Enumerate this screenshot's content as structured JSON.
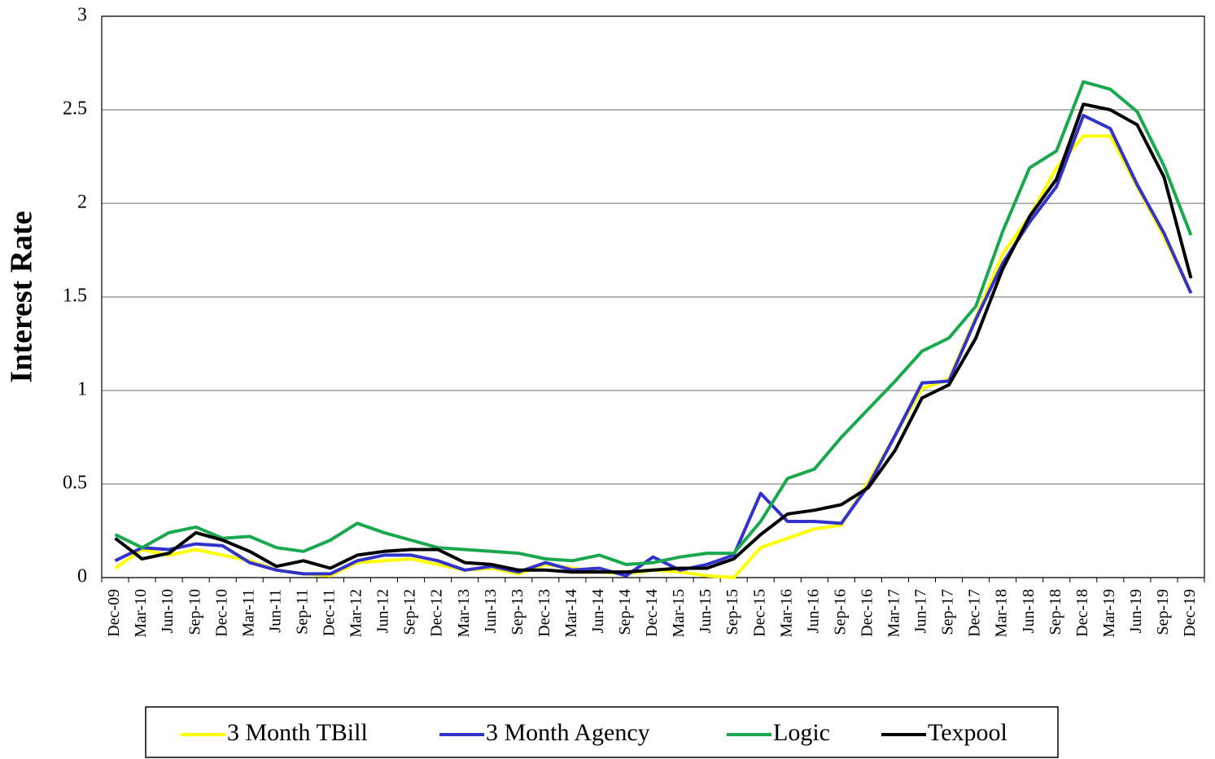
{
  "chart_data": {
    "type": "line",
    "y_label": "Interest Rate",
    "categories": [
      "Dec-09",
      "Mar-10",
      "Jun-10",
      "Sep-10",
      "Dec-10",
      "Mar-11",
      "Jun-11",
      "Sep-11",
      "Dec-11",
      "Mar-12",
      "Jun-12",
      "Sep-12",
      "Dec-12",
      "Mar-13",
      "Jun-13",
      "Sep-13",
      "Dec-13",
      "Mar-14",
      "Jun-14",
      "Sep-14",
      "Dec-14",
      "Mar-15",
      "Jun-15",
      "Sep-15",
      "Dec-15",
      "Mar-16",
      "Jun-16",
      "Sep-16",
      "Dec-16",
      "Mar-17",
      "Jun-17",
      "Sep-17",
      "Dec-17",
      "Mar-18",
      "Jun-18",
      "Sep-18",
      "Dec-18",
      "Mar-19",
      "Jun-19",
      "Sep-19",
      "Dec-19"
    ],
    "series": [
      {
        "name": "3 Month TBill",
        "color": "#ffff00",
        "values": [
          0.05,
          0.15,
          0.12,
          0.15,
          0.12,
          0.09,
          0.04,
          0.02,
          0.01,
          0.08,
          0.09,
          0.1,
          0.07,
          0.04,
          0.05,
          0.02,
          0.07,
          0.05,
          0.03,
          0.02,
          0.04,
          0.03,
          0.01,
          0.0,
          0.16,
          0.21,
          0.26,
          0.28,
          0.51,
          0.76,
          1.01,
          1.06,
          1.39,
          1.73,
          1.93,
          2.19,
          2.36,
          2.36,
          2.09,
          1.82,
          1.52
        ]
      },
      {
        "name": "3 Month Agency",
        "color": "#3333cc",
        "values": [
          0.09,
          0.16,
          0.15,
          0.18,
          0.17,
          0.08,
          0.04,
          0.02,
          0.02,
          0.09,
          0.12,
          0.12,
          0.09,
          0.04,
          0.06,
          0.03,
          0.08,
          0.04,
          0.05,
          0.01,
          0.11,
          0.04,
          0.07,
          0.12,
          0.45,
          0.3,
          0.3,
          0.29,
          0.49,
          0.76,
          1.04,
          1.05,
          1.38,
          1.68,
          1.9,
          2.09,
          2.47,
          2.4,
          2.1,
          1.84,
          1.52
        ]
      },
      {
        "name": "Logic",
        "color": "#1aa84f",
        "values": [
          0.23,
          0.16,
          0.24,
          0.27,
          0.21,
          0.22,
          0.16,
          0.14,
          0.2,
          0.29,
          0.24,
          0.2,
          0.16,
          0.15,
          0.14,
          0.13,
          0.1,
          0.09,
          0.12,
          0.07,
          0.08,
          0.11,
          0.13,
          0.13,
          0.3,
          0.53,
          0.58,
          0.75,
          0.9,
          1.05,
          1.21,
          1.28,
          1.45,
          1.85,
          2.19,
          2.28,
          2.65,
          2.61,
          2.49,
          2.2,
          1.83
        ]
      },
      {
        "name": "Texpool",
        "color": "#000000",
        "values": [
          0.21,
          0.1,
          0.13,
          0.24,
          0.2,
          0.14,
          0.06,
          0.09,
          0.05,
          0.12,
          0.14,
          0.15,
          0.15,
          0.08,
          0.07,
          0.04,
          0.04,
          0.03,
          0.03,
          0.03,
          0.04,
          0.05,
          0.05,
          0.1,
          0.23,
          0.34,
          0.36,
          0.39,
          0.48,
          0.68,
          0.96,
          1.03,
          1.28,
          1.65,
          1.93,
          2.13,
          2.53,
          2.5,
          2.42,
          2.14,
          1.6
        ]
      }
    ],
    "ylim": [
      0,
      3
    ],
    "yticks": [
      0,
      0.5,
      1,
      1.5,
      2,
      2.5,
      3
    ],
    "grid": true,
    "legend": "bottom"
  }
}
